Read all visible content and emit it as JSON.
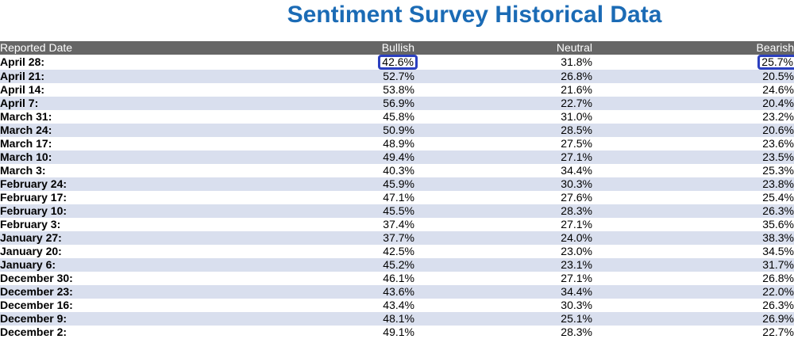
{
  "chart_data": {
    "type": "table",
    "title": "Sentiment Survey Historical Data",
    "columns": [
      "Reported Date",
      "Bullish",
      "Neutral",
      "Bearish"
    ],
    "rows": [
      {
        "date": "April 28:",
        "bullish": "42.6%",
        "neutral": "31.8%",
        "bearish": "25.7%"
      },
      {
        "date": "April 21:",
        "bullish": "52.7%",
        "neutral": "26.8%",
        "bearish": "20.5%"
      },
      {
        "date": "April 14:",
        "bullish": "53.8%",
        "neutral": "21.6%",
        "bearish": "24.6%"
      },
      {
        "date": "April 7:",
        "bullish": "56.9%",
        "neutral": "22.7%",
        "bearish": "20.4%"
      },
      {
        "date": "March 31:",
        "bullish": "45.8%",
        "neutral": "31.0%",
        "bearish": "23.2%"
      },
      {
        "date": "March 24:",
        "bullish": "50.9%",
        "neutral": "28.5%",
        "bearish": "20.6%"
      },
      {
        "date": "March 17:",
        "bullish": "48.9%",
        "neutral": "27.5%",
        "bearish": "23.6%"
      },
      {
        "date": "March 10:",
        "bullish": "49.4%",
        "neutral": "27.1%",
        "bearish": "23.5%"
      },
      {
        "date": "March 3:",
        "bullish": "40.3%",
        "neutral": "34.4%",
        "bearish": "25.3%"
      },
      {
        "date": "February 24:",
        "bullish": "45.9%",
        "neutral": "30.3%",
        "bearish": "23.8%"
      },
      {
        "date": "February 17:",
        "bullish": "47.1%",
        "neutral": "27.6%",
        "bearish": "25.4%"
      },
      {
        "date": "February 10:",
        "bullish": "45.5%",
        "neutral": "28.3%",
        "bearish": "26.3%"
      },
      {
        "date": "February 3:",
        "bullish": "37.4%",
        "neutral": "27.1%",
        "bearish": "35.6%"
      },
      {
        "date": "January 27:",
        "bullish": "37.7%",
        "neutral": "24.0%",
        "bearish": "38.3%"
      },
      {
        "date": "January 20:",
        "bullish": "42.5%",
        "neutral": "23.0%",
        "bearish": "34.5%"
      },
      {
        "date": "January 6:",
        "bullish": "45.2%",
        "neutral": "23.1%",
        "bearish": "31.7%"
      },
      {
        "date": "December 30:",
        "bullish": "46.1%",
        "neutral": "27.1%",
        "bearish": "26.8%"
      },
      {
        "date": "December 23:",
        "bullish": "43.6%",
        "neutral": "34.4%",
        "bearish": "22.0%"
      },
      {
        "date": "December 16:",
        "bullish": "43.4%",
        "neutral": "30.3%",
        "bearish": "26.3%"
      },
      {
        "date": "December 9:",
        "bullish": "48.1%",
        "neutral": "25.1%",
        "bearish": "26.9%"
      },
      {
        "date": "December 2:",
        "bullish": "49.1%",
        "neutral": "28.3%",
        "bearish": "22.7%"
      }
    ],
    "highlighted_cells": [
      {
        "row": 0,
        "column": "bullish"
      },
      {
        "row": 0,
        "column": "bearish"
      }
    ],
    "colors": {
      "title": "#1b6bb5",
      "header_bg": "#666666",
      "header_text": "#ffffff",
      "row_alt_bg": "#d9dfee",
      "highlight_border": "#2b3fbf"
    }
  }
}
